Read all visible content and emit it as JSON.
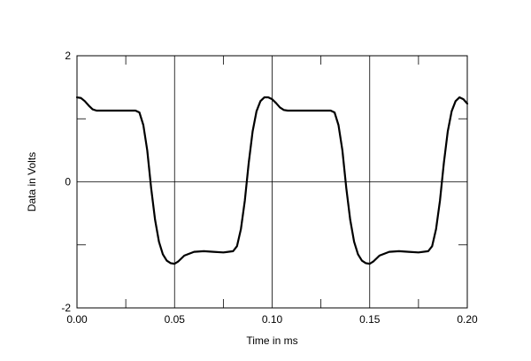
{
  "chart_data": {
    "type": "line",
    "title": "",
    "xlabel": "Time in ms",
    "ylabel": "Data in Volts",
    "xlim": [
      0.0,
      0.2
    ],
    "ylim": [
      -2,
      2
    ],
    "grid": true,
    "x_ticks": [
      "0.00",
      "0.05",
      "0.10",
      "0.15",
      "0.20"
    ],
    "y_ticks": [
      "2",
      "0",
      "-2"
    ],
    "series": [
      {
        "name": "",
        "color": "#000000",
        "points": [
          [
            0.0,
            1.34
          ],
          [
            0.002,
            1.33
          ],
          [
            0.004,
            1.28
          ],
          [
            0.006,
            1.21
          ],
          [
            0.008,
            1.15
          ],
          [
            0.01,
            1.13
          ],
          [
            0.015,
            1.13
          ],
          [
            0.02,
            1.13
          ],
          [
            0.025,
            1.13
          ],
          [
            0.03,
            1.13
          ],
          [
            0.032,
            1.1
          ],
          [
            0.034,
            0.9
          ],
          [
            0.036,
            0.5
          ],
          [
            0.038,
            -0.1
          ],
          [
            0.04,
            -0.6
          ],
          [
            0.042,
            -0.95
          ],
          [
            0.044,
            -1.15
          ],
          [
            0.046,
            -1.25
          ],
          [
            0.048,
            -1.29
          ],
          [
            0.05,
            -1.3
          ],
          [
            0.052,
            -1.26
          ],
          [
            0.055,
            -1.17
          ],
          [
            0.06,
            -1.11
          ],
          [
            0.065,
            -1.1
          ],
          [
            0.07,
            -1.11
          ],
          [
            0.075,
            -1.12
          ],
          [
            0.08,
            -1.1
          ],
          [
            0.082,
            -1.02
          ],
          [
            0.084,
            -0.75
          ],
          [
            0.086,
            -0.3
          ],
          [
            0.088,
            0.3
          ],
          [
            0.09,
            0.8
          ],
          [
            0.092,
            1.12
          ],
          [
            0.094,
            1.28
          ],
          [
            0.096,
            1.34
          ],
          [
            0.098,
            1.34
          ],
          [
            0.1,
            1.31
          ],
          [
            0.102,
            1.25
          ],
          [
            0.104,
            1.18
          ],
          [
            0.106,
            1.14
          ],
          [
            0.108,
            1.13
          ],
          [
            0.115,
            1.13
          ],
          [
            0.12,
            1.13
          ],
          [
            0.125,
            1.13
          ],
          [
            0.13,
            1.13
          ],
          [
            0.132,
            1.1
          ],
          [
            0.134,
            0.9
          ],
          [
            0.136,
            0.5
          ],
          [
            0.138,
            -0.1
          ],
          [
            0.14,
            -0.6
          ],
          [
            0.142,
            -0.95
          ],
          [
            0.144,
            -1.15
          ],
          [
            0.146,
            -1.25
          ],
          [
            0.148,
            -1.29
          ],
          [
            0.15,
            -1.3
          ],
          [
            0.152,
            -1.26
          ],
          [
            0.155,
            -1.17
          ],
          [
            0.16,
            -1.11
          ],
          [
            0.165,
            -1.1
          ],
          [
            0.17,
            -1.11
          ],
          [
            0.175,
            -1.12
          ],
          [
            0.18,
            -1.1
          ],
          [
            0.182,
            -1.02
          ],
          [
            0.184,
            -0.75
          ],
          [
            0.186,
            -0.3
          ],
          [
            0.188,
            0.3
          ],
          [
            0.19,
            0.8
          ],
          [
            0.192,
            1.12
          ],
          [
            0.194,
            1.28
          ],
          [
            0.196,
            1.34
          ],
          [
            0.198,
            1.31
          ],
          [
            0.2,
            1.24
          ]
        ]
      }
    ]
  }
}
